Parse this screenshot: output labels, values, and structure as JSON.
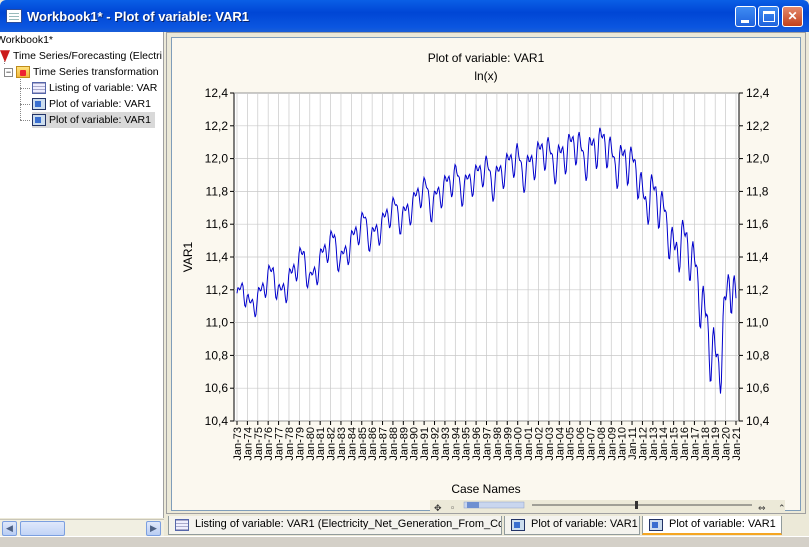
{
  "window": {
    "title": "Workbook1* - Plot of variable: VAR1"
  },
  "tree": {
    "items": [
      {
        "label": "Workbook1*",
        "icon": "workbook-icon"
      },
      {
        "label": "Time Series/Forecasting (Electri",
        "icon": "red-arrow-icon"
      },
      {
        "label": "Time Series transformation",
        "icon": "folder-icon"
      },
      {
        "label": "Listing of variable: VAR",
        "icon": "spreadsheet-icon"
      },
      {
        "label": "Plot of variable: VAR1",
        "icon": "graph-icon"
      },
      {
        "label": "Plot of variable: VAR1",
        "icon": "graph-icon",
        "selected": true
      }
    ]
  },
  "tabs": [
    {
      "label": "Listing of variable: VAR1 (Electricity_Net_Generation_From_Co...",
      "icon": "spreadsheet-icon"
    },
    {
      "label": "Plot of variable: VAR1",
      "icon": "graph-icon"
    },
    {
      "label": "Plot of variable: VAR1",
      "icon": "graph-icon",
      "active": true
    }
  ],
  "colors": {
    "series": "#0000cc",
    "frame_bg": "#fbf8ef",
    "title_bar": "#0046d5"
  },
  "chart_data": {
    "type": "line",
    "title": "Plot of variable: VAR1",
    "subtitle": "ln(x)",
    "xlabel": "Case Names",
    "ylabel": "VAR1",
    "ylim": [
      10.4,
      12.4
    ],
    "yticks": [
      "10,4",
      "10,6",
      "10,8",
      "11,0",
      "11,2",
      "11,4",
      "11,6",
      "11,8",
      "12,0",
      "12,2",
      "12,4"
    ],
    "grid": true,
    "xtick_labels": [
      "Jan-73",
      "Jan-74",
      "Jan-75",
      "Jan-76",
      "Jan-77",
      "Jan-78",
      "Jan-79",
      "Jan-80",
      "Jan-81",
      "Jan-82",
      "Jan-83",
      "Jan-84",
      "Jan-85",
      "Jan-86",
      "Jan-87",
      "Jan-88",
      "Jan-89",
      "Jan-90",
      "Jan-91",
      "Jan-92",
      "Jan-93",
      "Jan-94",
      "Jan-95",
      "Jan-96",
      "Jan-97",
      "Jan-98",
      "Jan-99",
      "Jan-00",
      "Jan-01",
      "Jan-02",
      "Jan-03",
      "Jan-04",
      "Jan-05",
      "Jan-06",
      "Jan-07",
      "Jan-08",
      "Jan-09",
      "Jan-10",
      "Jan-11",
      "Jan-12",
      "Jan-13",
      "Jan-14",
      "Jan-15",
      "Jan-16",
      "Jan-17",
      "Jan-18",
      "Jan-19",
      "Jan-20",
      "Jan-21"
    ],
    "series": [
      {
        "values": [
          11.15,
          11.22,
          11.1,
          11.12,
          11.18,
          11.28,
          11.3,
          11.16,
          11.22,
          11.28,
          11.38,
          11.4,
          11.24,
          11.32,
          11.4,
          11.48,
          11.5,
          11.36,
          11.44,
          11.5,
          11.58,
          11.62,
          11.5,
          11.56,
          11.6,
          11.68,
          11.7,
          11.62,
          11.68,
          11.72,
          11.8,
          11.82,
          11.7,
          11.78,
          11.82,
          11.86,
          11.9,
          11.8,
          11.86,
          11.88,
          11.92,
          11.95,
          11.84,
          11.9,
          11.94,
          11.98,
          12.02,
          11.9,
          11.95,
          12.0,
          12.04,
          12.06,
          11.96,
          12.0,
          12.04,
          12.08,
          12.1,
          11.98,
          12.04,
          12.08,
          12.1,
          12.08,
          11.95,
          11.98,
          12.0,
          11.96,
          11.9,
          11.7,
          11.8,
          11.76,
          11.68,
          11.55,
          11.4,
          11.52,
          11.48,
          11.36,
          11.2,
          11.0,
          10.85,
          10.7,
          10.98,
          11.3,
          11.1
        ],
        "amplitudes": [
          0.08,
          0.09,
          0.08,
          0.09,
          0.1,
          0.1,
          0.1,
          0.1,
          0.11,
          0.11,
          0.11,
          0.11,
          0.1,
          0.11,
          0.11,
          0.11,
          0.11,
          0.1,
          0.11,
          0.11,
          0.11,
          0.11,
          0.1,
          0.11,
          0.11,
          0.11,
          0.11,
          0.1,
          0.11,
          0.11,
          0.11,
          0.11,
          0.1,
          0.11,
          0.11,
          0.11,
          0.11,
          0.1,
          0.11,
          0.11,
          0.11,
          0.11,
          0.11,
          0.12,
          0.12,
          0.12,
          0.12,
          0.12,
          0.13,
          0.13,
          0.13,
          0.13,
          0.13,
          0.14,
          0.14,
          0.14,
          0.14,
          0.14,
          0.15,
          0.15,
          0.15,
          0.15,
          0.15,
          0.16,
          0.16,
          0.16,
          0.16,
          0.16,
          0.17,
          0.17,
          0.17,
          0.17,
          0.18,
          0.18,
          0.18,
          0.2,
          0.22,
          0.24,
          0.26,
          0.28,
          0.26,
          0.22,
          0.2
        ]
      }
    ]
  }
}
